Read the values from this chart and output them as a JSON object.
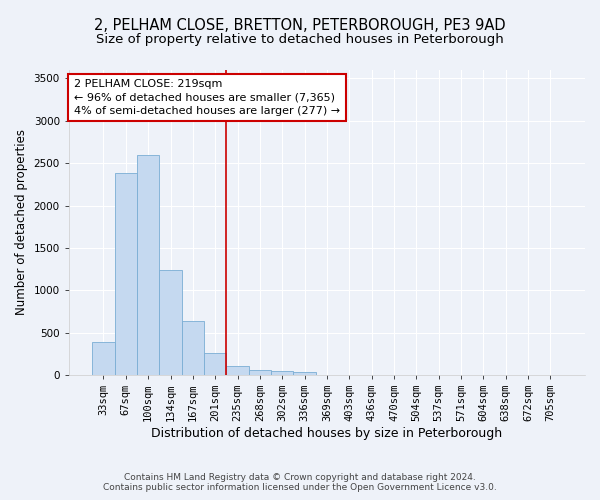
{
  "title_line1": "2, PELHAM CLOSE, BRETTON, PETERBOROUGH, PE3 9AD",
  "title_line2": "Size of property relative to detached houses in Peterborough",
  "xlabel": "Distribution of detached houses by size in Peterborough",
  "ylabel": "Number of detached properties",
  "footnote1": "Contains HM Land Registry data © Crown copyright and database right 2024.",
  "footnote2": "Contains public sector information licensed under the Open Government Licence v3.0.",
  "annotation_line1": "2 PELHAM CLOSE: 219sqm",
  "annotation_line2": "← 96% of detached houses are smaller (7,365)",
  "annotation_line3": "4% of semi-detached houses are larger (277) →",
  "bar_color": "#c5d9f0",
  "bar_edge_color": "#7aadd4",
  "vline_color": "#cc0000",
  "vline_x_idx": 6,
  "categories": [
    "33sqm",
    "67sqm",
    "100sqm",
    "134sqm",
    "167sqm",
    "201sqm",
    "235sqm",
    "268sqm",
    "302sqm",
    "336sqm",
    "369sqm",
    "403sqm",
    "436sqm",
    "470sqm",
    "504sqm",
    "537sqm",
    "571sqm",
    "604sqm",
    "638sqm",
    "672sqm",
    "705sqm"
  ],
  "values": [
    390,
    2380,
    2600,
    1240,
    640,
    260,
    110,
    60,
    50,
    40,
    0,
    0,
    0,
    0,
    0,
    0,
    0,
    0,
    0,
    0,
    0
  ],
  "ylim": [
    0,
    3600
  ],
  "yticks": [
    0,
    500,
    1000,
    1500,
    2000,
    2500,
    3000,
    3500
  ],
  "background_color": "#eef2f9",
  "plot_bg_color": "#eef2f9",
  "grid_color": "#ffffff",
  "title_fontsize": 10.5,
  "subtitle_fontsize": 9.5,
  "xlabel_fontsize": 9,
  "ylabel_fontsize": 8.5,
  "tick_fontsize": 7.5,
  "annotation_fontsize": 8,
  "annotation_box_color": "#ffffff",
  "annotation_box_edge": "#cc0000",
  "footnote_fontsize": 6.5
}
